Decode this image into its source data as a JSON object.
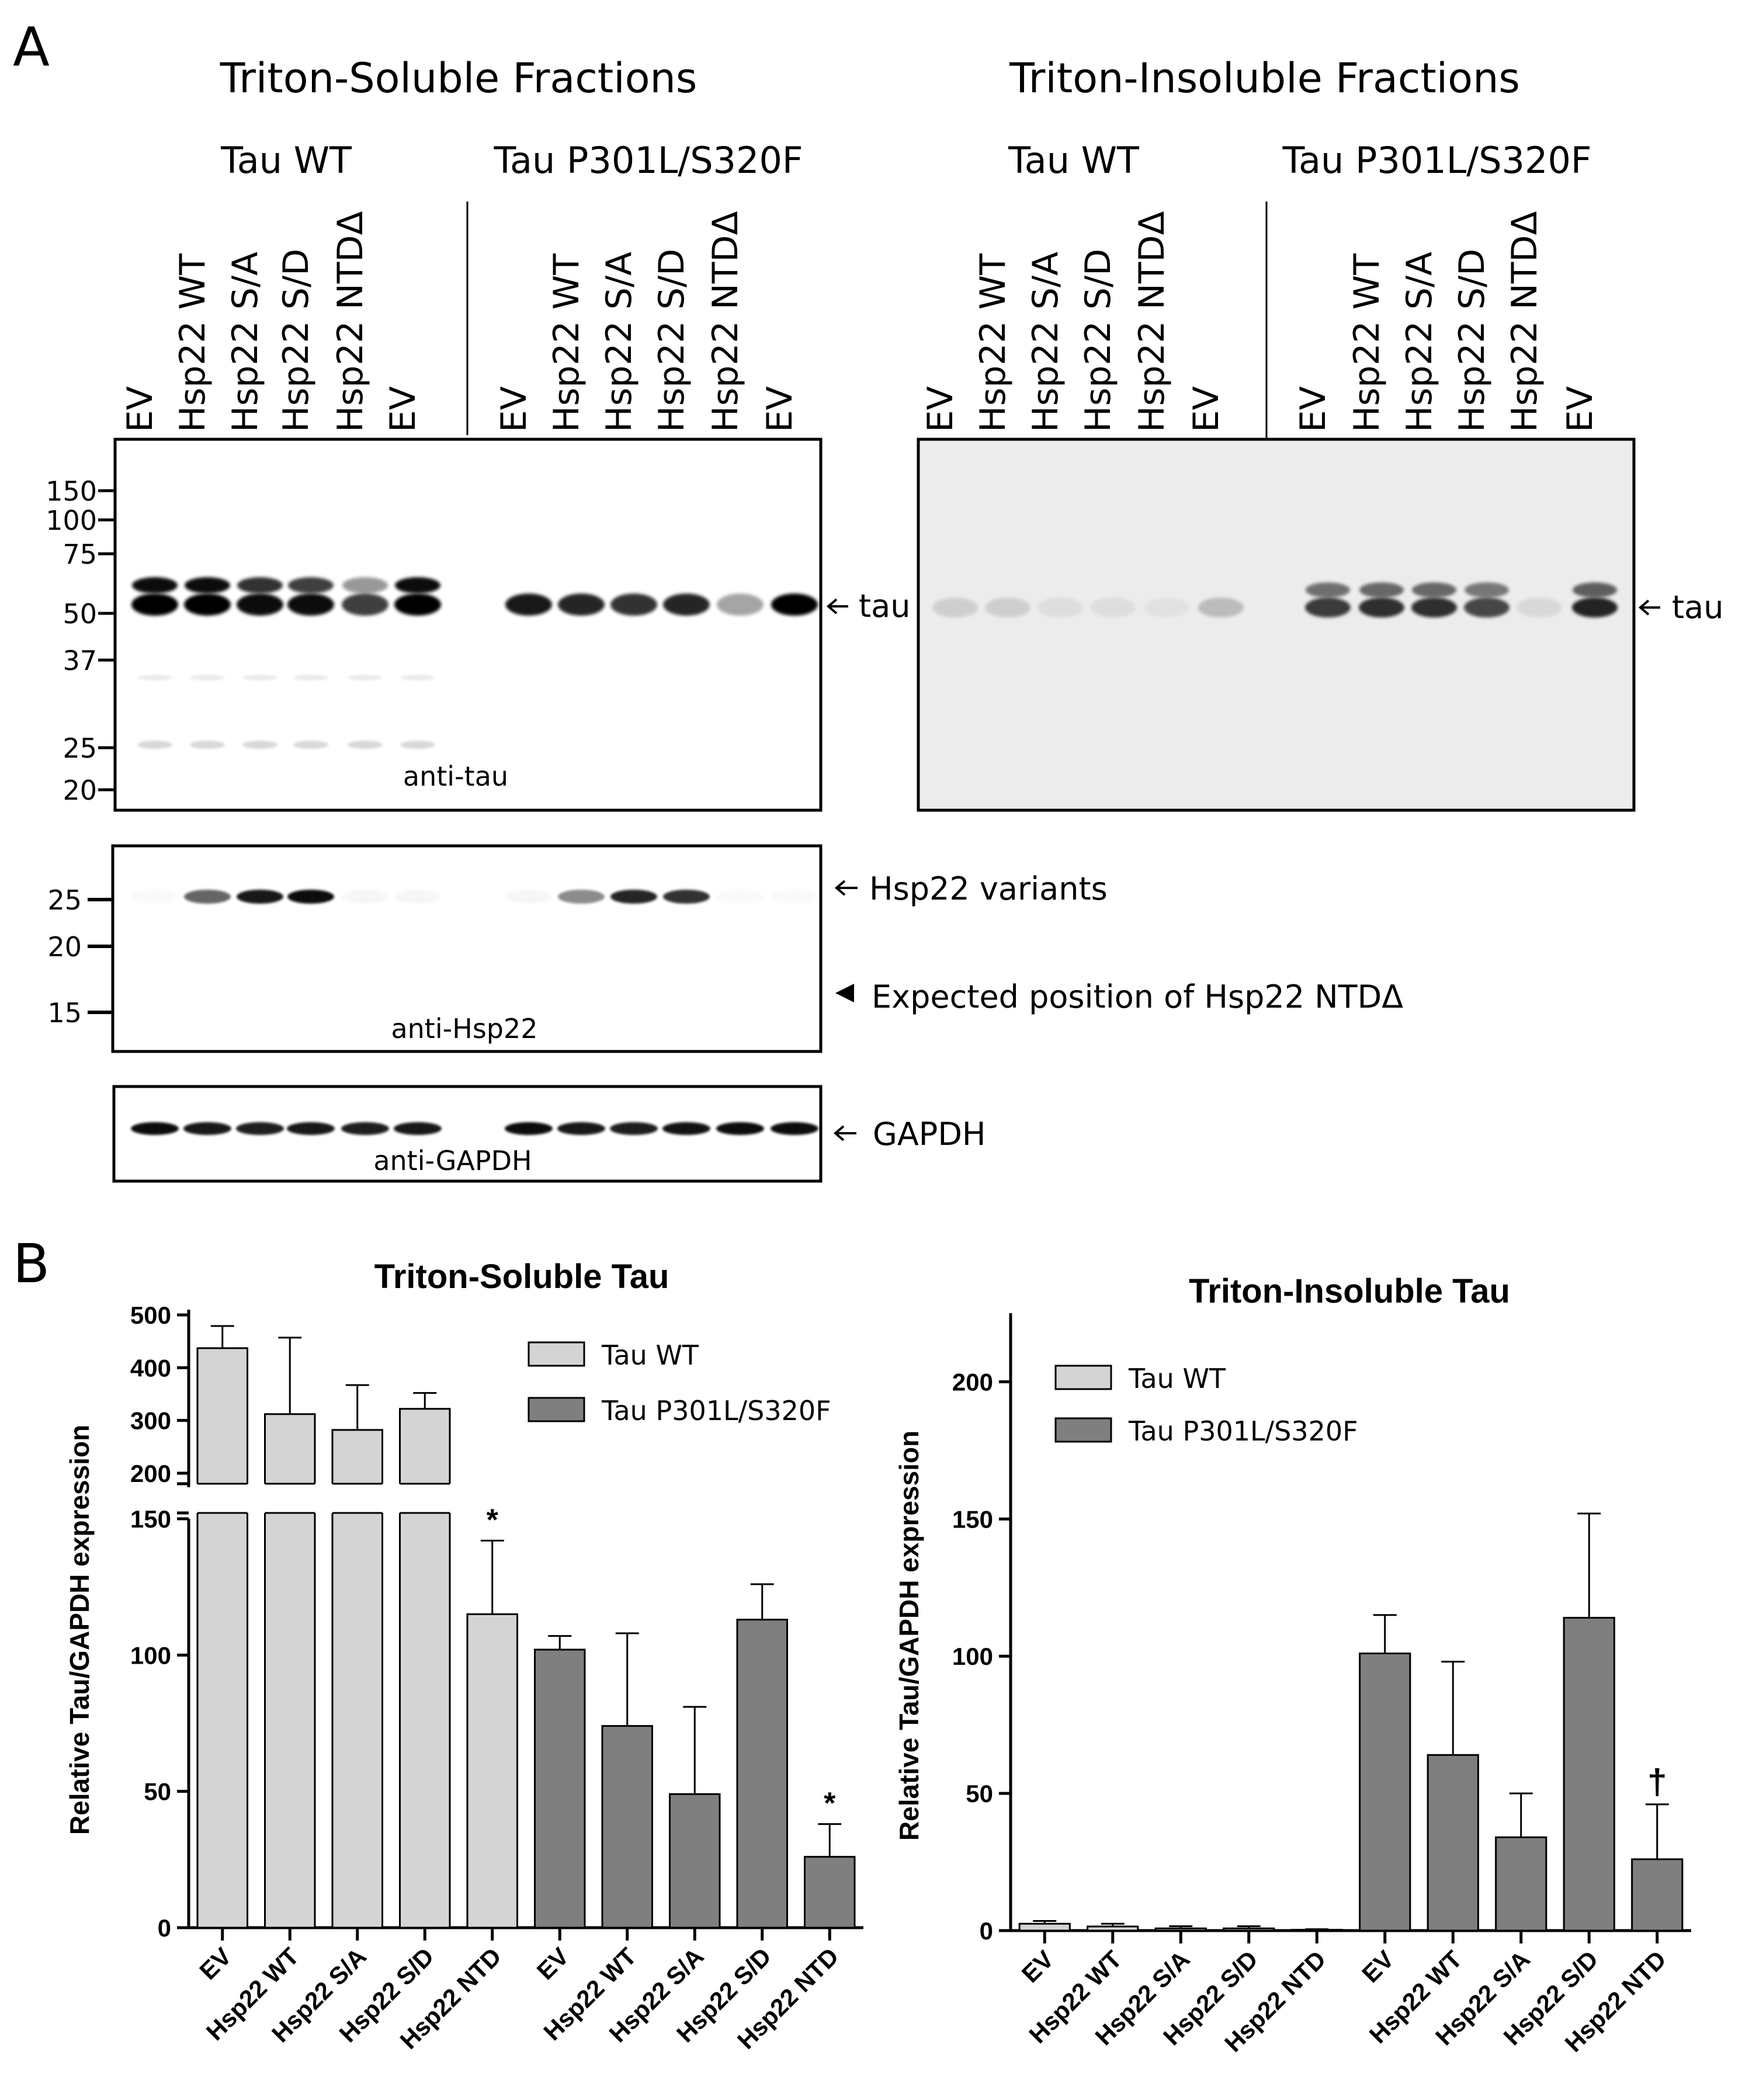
{
  "panel_a": {
    "label": "A",
    "soluble_title": "Triton-Soluble Fractions",
    "insoluble_title": "Triton-Insoluble Fractions",
    "group_wt": "Tau WT",
    "group_mut": "Tau P301L/S320F",
    "lanes": [
      "EV",
      "Hsp22 WT",
      "Hsp22 S/A",
      "Hsp22 S/D",
      "Hsp22 NTDΔ",
      "EV"
    ],
    "mw_tau": [
      "150",
      "100",
      "75",
      "50",
      "37",
      "25",
      "20"
    ],
    "mw_hsp": [
      "25",
      "20",
      "15"
    ],
    "blot_tau_label": "anti-tau",
    "blot_hsp_label": "anti-Hsp22",
    "blot_gapdh_label": "anti-GAPDH",
    "arrow_tau": "tau",
    "arrow_tau_insoluble": "tau",
    "arrow_hsp": "Hsp22 variants",
    "arrow_expected": "Expected position of Hsp22 NTDΔ",
    "arrow_gapdh": "GAPDH"
  },
  "panel_b": {
    "label": "B"
  },
  "chart_data": [
    {
      "type": "bar",
      "title": "Triton-Soluble Tau",
      "ylabel": "Relative Tau/GAPDH expression",
      "y_axis": "broken",
      "ylim_lower": [
        0,
        150
      ],
      "ylim_upper": [
        180,
        510
      ],
      "yticks_lower": [
        "0",
        "50",
        "100",
        "150"
      ],
      "yticks_upper": [
        "200",
        "300",
        "400",
        "500"
      ],
      "categories": [
        "EV",
        "Hsp22 WT",
        "Hsp22 S/A",
        "Hsp22 S/D",
        "Hsp22 NTD",
        "EV",
        "Hsp22 WT",
        "Hsp22 S/A",
        "Hsp22 S/D",
        "Hsp22 NTD"
      ],
      "legend_position": "top-right",
      "series": [
        {
          "name": "Tau WT",
          "color": "#d4d4d4",
          "values": [
            437,
            312,
            282,
            322,
            115,
            null,
            null,
            null,
            null,
            null
          ],
          "errors": [
            42,
            145,
            85,
            30,
            27,
            null,
            null,
            null,
            null,
            null
          ]
        },
        {
          "name": "Tau P301L/S320F",
          "color": "#7f7f7f",
          "values": [
            null,
            null,
            null,
            null,
            null,
            102,
            74,
            49,
            113,
            26
          ],
          "errors": [
            null,
            null,
            null,
            null,
            null,
            5,
            34,
            32,
            13,
            12
          ]
        }
      ],
      "annotations": [
        "*",
        "*"
      ],
      "annotation_bars": [
        4,
        9
      ]
    },
    {
      "type": "bar",
      "title": "Triton-Insoluble Tau",
      "ylabel": "Relative Tau/GAPDH expression",
      "ylim": [
        0,
        225
      ],
      "yticks": [
        "0",
        "50",
        "100",
        "150",
        "200"
      ],
      "categories": [
        "EV",
        "Hsp22 WT",
        "Hsp22 S/A",
        "Hsp22 S/D",
        "Hsp22 NTD",
        "EV",
        "Hsp22 WT",
        "Hsp22 S/A",
        "Hsp22 S/D",
        "Hsp22 NTD"
      ],
      "legend_position": "top-left",
      "series": [
        {
          "name": "Tau  WT",
          "color": "#d4d4d4",
          "values": [
            2.5,
            1.5,
            0.8,
            0.8,
            0.3,
            null,
            null,
            null,
            null,
            null
          ],
          "errors": [
            1.0,
            1.0,
            0.8,
            0.8,
            0.2,
            null,
            null,
            null,
            null,
            null
          ]
        },
        {
          "name": "Tau P301L/S320F",
          "color": "#7f7f7f",
          "values": [
            null,
            null,
            null,
            null,
            null,
            101,
            64,
            34,
            114,
            26
          ],
          "errors": [
            null,
            null,
            null,
            null,
            null,
            14,
            34,
            16,
            38,
            20
          ]
        }
      ],
      "annotations": [
        "†"
      ],
      "annotation_bars": [
        9
      ]
    }
  ]
}
